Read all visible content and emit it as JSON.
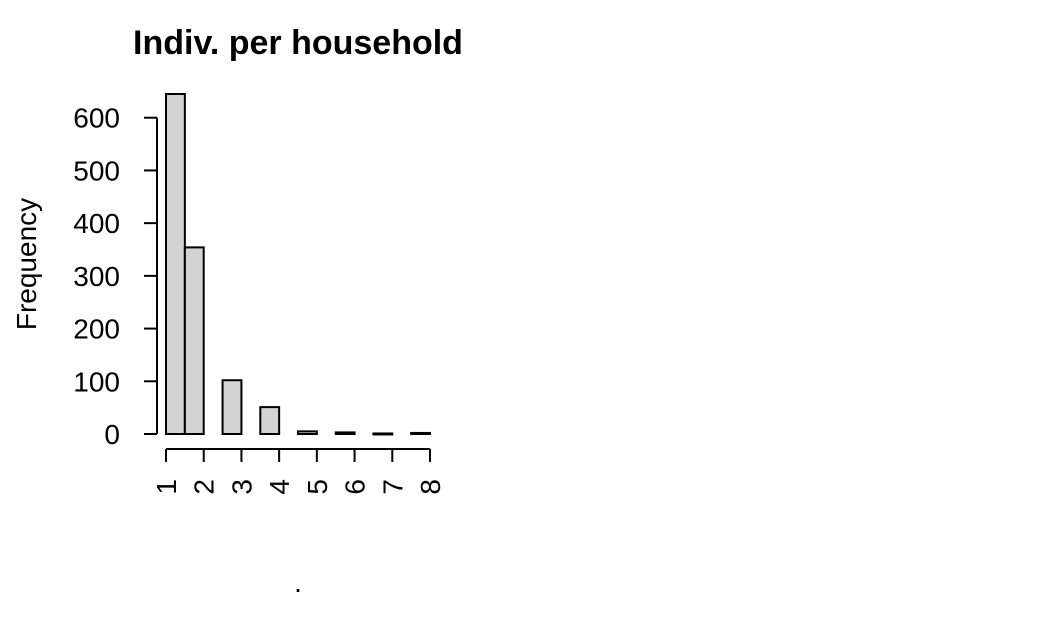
{
  "chart_data": {
    "type": "bar",
    "title": "Indiv. per household",
    "xlabel": ".",
    "ylabel": "Frequency",
    "bins": [
      {
        "from": 0.5,
        "to": 1.0,
        "value": 645
      },
      {
        "from": 1.0,
        "to": 1.5,
        "value": 354
      },
      {
        "from": 1.5,
        "to": 2.0,
        "value": 0
      },
      {
        "from": 2.0,
        "to": 2.5,
        "value": 102
      },
      {
        "from": 2.5,
        "to": 3.0,
        "value": 0
      },
      {
        "from": 3.0,
        "to": 3.5,
        "value": 51
      },
      {
        "from": 3.5,
        "to": 4.0,
        "value": 0
      },
      {
        "from": 4.0,
        "to": 4.5,
        "value": 5
      },
      {
        "from": 4.5,
        "to": 5.0,
        "value": 0
      },
      {
        "from": 5.0,
        "to": 5.5,
        "value": 3
      },
      {
        "from": 5.5,
        "to": 6.0,
        "value": 0
      },
      {
        "from": 6.0,
        "to": 6.5,
        "value": 1
      },
      {
        "from": 6.5,
        "to": 7.0,
        "value": 0
      },
      {
        "from": 7.0,
        "to": 7.5,
        "value": 2
      }
    ],
    "xlim": [
      0.5,
      7.5
    ],
    "ylim": [
      0,
      645
    ],
    "yticks": [
      0,
      100,
      200,
      300,
      400,
      500,
      600
    ],
    "xtick_labels": [
      "1",
      "2",
      "3",
      "4",
      "5",
      "6",
      "7",
      "8"
    ],
    "grid": false,
    "legend": "none",
    "colors": {
      "bar_fill": "#d3d3d3",
      "bar_stroke": "#000000"
    }
  }
}
